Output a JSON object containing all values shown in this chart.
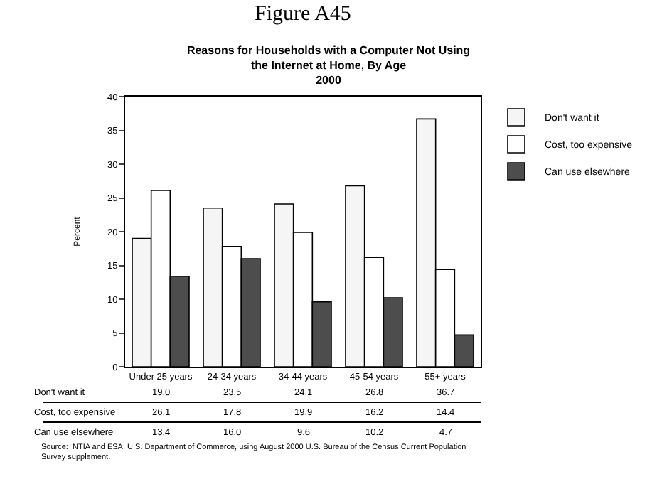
{
  "chart_data": {
    "type": "bar",
    "title": "Reasons for Households with a Computer Not Using the Internet at Home, By Age",
    "subtitle": "2000",
    "ylabel": "Percent",
    "categories": [
      "Under 25 years",
      "24-34 years",
      "34-44 years",
      "45-54 years",
      "55+ years"
    ],
    "series": [
      {
        "name": "Don't want it",
        "color": "#f5f5f5",
        "values": [
          19.0,
          23.5,
          24.1,
          26.8,
          36.7
        ],
        "value_labels": [
          "19.0",
          "23.5",
          "24.1",
          "26.8",
          "36.7"
        ]
      },
      {
        "name": "Cost, too expensive",
        "color": "#ffffff",
        "values": [
          26.1,
          17.8,
          19.9,
          16.2,
          14.4
        ],
        "value_labels": [
          "26.1",
          "17.8",
          "19.9",
          "16.2",
          "14.4"
        ]
      },
      {
        "name": "Can use elsewhere",
        "color": "#4d4d4d",
        "values": [
          13.4,
          16.0,
          9.6,
          10.2,
          4.7
        ],
        "value_labels": [
          "13.4",
          "16.0",
          "9.6",
          "10.2",
          "4.7"
        ]
      }
    ],
    "ylim": [
      0,
      40
    ],
    "yticks": [
      0,
      5,
      10,
      15,
      20,
      25,
      30,
      35,
      40
    ],
    "grid": false,
    "legend": "top right",
    "annotations": [
      "Figure A45",
      "Source:  NTIA and ESA, U.S. Department of Commerce, using August 2000 U.S. Bureau of the Census Current Population Survey supplement."
    ]
  }
}
